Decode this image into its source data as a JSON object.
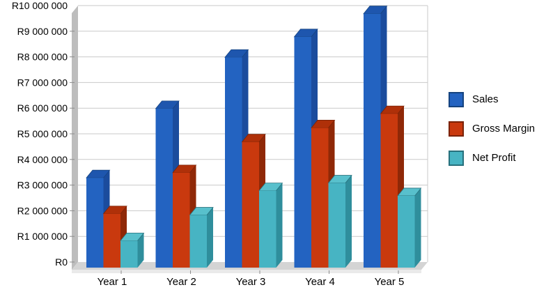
{
  "chart_data": {
    "type": "bar",
    "style": "3d-column",
    "title": "",
    "xlabel": "",
    "ylabel": "",
    "currency_prefix": "R",
    "categories": [
      "Year 1",
      "Year 2",
      "Year 3",
      "Year 4",
      "Year 5"
    ],
    "series": [
      {
        "name": "Sales",
        "values": [
          3500000,
          6200000,
          8200000,
          9000000,
          9900000
        ],
        "color_front": "#2363C1",
        "color_side": "#1B4C9D",
        "color_top": "#1E56AE",
        "color_border": "#15437F"
      },
      {
        "name": "Gross Margin",
        "values": [
          2100000,
          3700000,
          4900000,
          5450000,
          6000000
        ],
        "color_front": "#C9390E",
        "color_side": "#8F2807",
        "color_top": "#AF3009",
        "color_border": "#7A2206"
      },
      {
        "name": "Net Profit",
        "values": [
          1050000,
          2050000,
          3000000,
          3300000,
          2800000
        ],
        "color_front": "#47B4C3",
        "color_side": "#2F8E9C",
        "color_top": "#58C0CC",
        "color_border": "#27707C"
      }
    ],
    "ylim": [
      0,
      10000000
    ],
    "ytick_step": 1000000,
    "ytick_labels": [
      "R0",
      "R1 000 000",
      "R2 000 000",
      "R3 000 000",
      "R4 000 000",
      "R5 000 000",
      "R6 000 000",
      "R7 000 000",
      "R8 000 000",
      "R9 000 000",
      "R10 000 000"
    ],
    "grid": true,
    "legend_position": "right",
    "wall_color": "#BDBDBD",
    "floor_color": "#D4D4D4",
    "gridline_color": "#C9C9C9",
    "tick_color": "#8C8C8C",
    "text_color": "#000000"
  },
  "legend": {
    "items": [
      {
        "label": "Sales"
      },
      {
        "label": "Gross Margin"
      },
      {
        "label": "Net Profit"
      }
    ]
  }
}
